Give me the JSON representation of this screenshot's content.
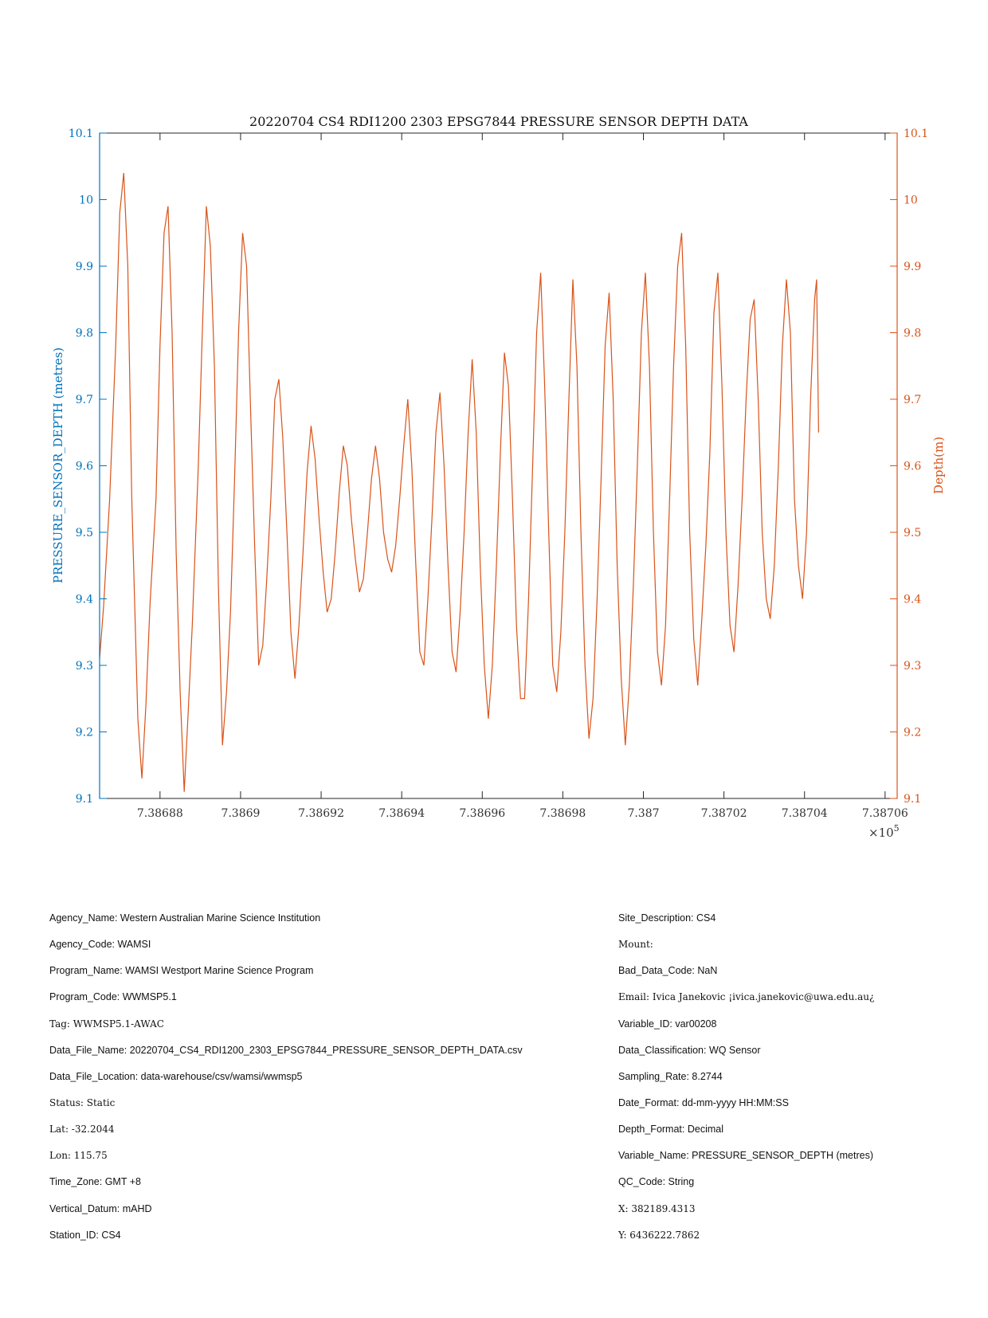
{
  "chart_data": {
    "type": "line",
    "title": "20220704 CS4 RDI1200 2303 EPSG7844 PRESSURE SENSOR DEPTH DATA",
    "ylabel_left": "PRESSURE_SENSOR_DEPTH (metres)",
    "ylabel_right": "Depth(m)",
    "x_exponent": "×10",
    "x_exponent_power": "5",
    "xlim": [
      738686.5,
      738706.3
    ],
    "ylim": [
      9.1,
      10.1
    ],
    "x_ticks": [
      {
        "value": 738688,
        "label": "7.38688"
      },
      {
        "value": 738690,
        "label": "7.3869"
      },
      {
        "value": 738692,
        "label": "7.38692"
      },
      {
        "value": 738694,
        "label": "7.38694"
      },
      {
        "value": 738696,
        "label": "7.38696"
      },
      {
        "value": 738698,
        "label": "7.38698"
      },
      {
        "value": 738700,
        "label": "7.387"
      },
      {
        "value": 738702,
        "label": "7.38702"
      },
      {
        "value": 738704,
        "label": "7.38704"
      },
      {
        "value": 738706,
        "label": "7.38706"
      }
    ],
    "y_ticks": [
      {
        "value": 9.1,
        "label": "9.1"
      },
      {
        "value": 9.2,
        "label": "9.2"
      },
      {
        "value": 9.3,
        "label": "9.3"
      },
      {
        "value": 9.4,
        "label": "9.4"
      },
      {
        "value": 9.5,
        "label": "9.5"
      },
      {
        "value": 9.6,
        "label": "9.6"
      },
      {
        "value": 9.7,
        "label": "9.7"
      },
      {
        "value": 9.8,
        "label": "9.8"
      },
      {
        "value": 9.9,
        "label": "9.9"
      },
      {
        "value": 10.0,
        "label": "10"
      },
      {
        "value": 10.1,
        "label": "10.1"
      }
    ],
    "grid": false,
    "legend": "none",
    "colors": {
      "left_axis": "#0072bd",
      "right_axis": "#d95319",
      "line": "#d95319"
    },
    "series": [
      {
        "points": [
          [
            738686.5,
            9.31
          ],
          [
            738686.6,
            9.39
          ],
          [
            738686.75,
            9.55
          ],
          [
            738686.9,
            9.78
          ],
          [
            738687.0,
            9.98
          ],
          [
            738687.1,
            10.04
          ],
          [
            738687.2,
            9.9
          ],
          [
            738687.3,
            9.55
          ],
          [
            738687.45,
            9.22
          ],
          [
            738687.55,
            9.13
          ],
          [
            738687.65,
            9.24
          ],
          [
            738687.75,
            9.39
          ],
          [
            738687.9,
            9.55
          ],
          [
            738688.0,
            9.78
          ],
          [
            738688.1,
            9.95
          ],
          [
            738688.2,
            9.99
          ],
          [
            738688.3,
            9.8
          ],
          [
            738688.4,
            9.47
          ],
          [
            738688.5,
            9.26
          ],
          [
            738688.6,
            9.11
          ],
          [
            738688.7,
            9.23
          ],
          [
            738688.8,
            9.36
          ],
          [
            738688.95,
            9.6
          ],
          [
            738689.05,
            9.8
          ],
          [
            738689.15,
            9.99
          ],
          [
            738689.25,
            9.93
          ],
          [
            738689.35,
            9.75
          ],
          [
            738689.45,
            9.42
          ],
          [
            738689.55,
            9.18
          ],
          [
            738689.65,
            9.26
          ],
          [
            738689.75,
            9.38
          ],
          [
            738689.85,
            9.58
          ],
          [
            738689.95,
            9.8
          ],
          [
            738690.05,
            9.95
          ],
          [
            738690.15,
            9.9
          ],
          [
            738690.25,
            9.68
          ],
          [
            738690.35,
            9.48
          ],
          [
            738690.45,
            9.3
          ],
          [
            738690.55,
            9.33
          ],
          [
            738690.65,
            9.43
          ],
          [
            738690.75,
            9.55
          ],
          [
            738690.85,
            9.7
          ],
          [
            738690.95,
            9.73
          ],
          [
            738691.05,
            9.64
          ],
          [
            738691.15,
            9.5
          ],
          [
            738691.25,
            9.35
          ],
          [
            738691.35,
            9.28
          ],
          [
            738691.45,
            9.36
          ],
          [
            738691.55,
            9.47
          ],
          [
            738691.65,
            9.59
          ],
          [
            738691.75,
            9.66
          ],
          [
            738691.85,
            9.61
          ],
          [
            738691.95,
            9.52
          ],
          [
            738692.05,
            9.44
          ],
          [
            738692.15,
            9.38
          ],
          [
            738692.25,
            9.4
          ],
          [
            738692.35,
            9.47
          ],
          [
            738692.45,
            9.56
          ],
          [
            738692.55,
            9.63
          ],
          [
            738692.65,
            9.6
          ],
          [
            738692.75,
            9.52
          ],
          [
            738692.85,
            9.46
          ],
          [
            738692.95,
            9.41
          ],
          [
            738693.05,
            9.43
          ],
          [
            738693.15,
            9.5
          ],
          [
            738693.25,
            9.58
          ],
          [
            738693.35,
            9.63
          ],
          [
            738693.45,
            9.58
          ],
          [
            738693.55,
            9.5
          ],
          [
            738693.65,
            9.46
          ],
          [
            738693.75,
            9.44
          ],
          [
            738693.85,
            9.48
          ],
          [
            738693.95,
            9.55
          ],
          [
            738694.05,
            9.63
          ],
          [
            738694.15,
            9.7
          ],
          [
            738694.25,
            9.6
          ],
          [
            738694.35,
            9.45
          ],
          [
            738694.45,
            9.32
          ],
          [
            738694.55,
            9.3
          ],
          [
            738694.65,
            9.4
          ],
          [
            738694.75,
            9.52
          ],
          [
            738694.85,
            9.65
          ],
          [
            738694.95,
            9.71
          ],
          [
            738695.05,
            9.6
          ],
          [
            738695.15,
            9.45
          ],
          [
            738695.25,
            9.32
          ],
          [
            738695.35,
            9.29
          ],
          [
            738695.45,
            9.38
          ],
          [
            738695.55,
            9.5
          ],
          [
            738695.65,
            9.65
          ],
          [
            738695.75,
            9.76
          ],
          [
            738695.85,
            9.65
          ],
          [
            738695.95,
            9.45
          ],
          [
            738696.05,
            9.3
          ],
          [
            738696.15,
            9.22
          ],
          [
            738696.25,
            9.3
          ],
          [
            738696.35,
            9.45
          ],
          [
            738696.45,
            9.62
          ],
          [
            738696.55,
            9.77
          ],
          [
            738696.65,
            9.72
          ],
          [
            738696.75,
            9.55
          ],
          [
            738696.85,
            9.36
          ],
          [
            738696.95,
            9.25
          ],
          [
            738697.05,
            9.25
          ],
          [
            738697.15,
            9.4
          ],
          [
            738697.25,
            9.6
          ],
          [
            738697.35,
            9.8
          ],
          [
            738697.45,
            9.89
          ],
          [
            738697.55,
            9.72
          ],
          [
            738697.65,
            9.5
          ],
          [
            738697.75,
            9.3
          ],
          [
            738697.85,
            9.26
          ],
          [
            738697.95,
            9.35
          ],
          [
            738698.05,
            9.5
          ],
          [
            738698.15,
            9.7
          ],
          [
            738698.25,
            9.88
          ],
          [
            738698.35,
            9.75
          ],
          [
            738698.45,
            9.5
          ],
          [
            738698.55,
            9.3
          ],
          [
            738698.65,
            9.19
          ],
          [
            738698.75,
            9.25
          ],
          [
            738698.85,
            9.4
          ],
          [
            738698.95,
            9.58
          ],
          [
            738699.05,
            9.78
          ],
          [
            738699.15,
            9.86
          ],
          [
            738699.25,
            9.7
          ],
          [
            738699.35,
            9.45
          ],
          [
            738699.45,
            9.28
          ],
          [
            738699.55,
            9.18
          ],
          [
            738699.65,
            9.27
          ],
          [
            738699.75,
            9.42
          ],
          [
            738699.85,
            9.6
          ],
          [
            738699.95,
            9.8
          ],
          [
            738700.05,
            9.89
          ],
          [
            738700.15,
            9.75
          ],
          [
            738700.25,
            9.5
          ],
          [
            738700.35,
            9.32
          ],
          [
            738700.45,
            9.27
          ],
          [
            738700.55,
            9.36
          ],
          [
            738700.65,
            9.55
          ],
          [
            738700.75,
            9.75
          ],
          [
            738700.85,
            9.9
          ],
          [
            738700.95,
            9.95
          ],
          [
            738701.05,
            9.78
          ],
          [
            738701.15,
            9.5
          ],
          [
            738701.25,
            9.34
          ],
          [
            738701.35,
            9.27
          ],
          [
            738701.45,
            9.37
          ],
          [
            738701.55,
            9.48
          ],
          [
            738701.65,
            9.62
          ],
          [
            738701.75,
            9.83
          ],
          [
            738701.85,
            9.89
          ],
          [
            738701.95,
            9.72
          ],
          [
            738702.05,
            9.5
          ],
          [
            738702.15,
            9.36
          ],
          [
            738702.25,
            9.32
          ],
          [
            738702.35,
            9.42
          ],
          [
            738702.45,
            9.55
          ],
          [
            738702.55,
            9.7
          ],
          [
            738702.65,
            9.82
          ],
          [
            738702.75,
            9.85
          ],
          [
            738702.85,
            9.7
          ],
          [
            738702.95,
            9.5
          ],
          [
            738703.05,
            9.4
          ],
          [
            738703.15,
            9.37
          ],
          [
            738703.25,
            9.45
          ],
          [
            738703.35,
            9.6
          ],
          [
            738703.45,
            9.78
          ],
          [
            738703.55,
            9.88
          ],
          [
            738703.65,
            9.8
          ],
          [
            738703.75,
            9.55
          ],
          [
            738703.85,
            9.45
          ],
          [
            738703.95,
            9.4
          ],
          [
            738704.05,
            9.5
          ],
          [
            738704.15,
            9.7
          ],
          [
            738704.25,
            9.85
          ],
          [
            738704.3,
            9.88
          ],
          [
            738704.35,
            9.65
          ]
        ]
      }
    ]
  },
  "metadata": {
    "left": [
      "Agency_Name: Western Australian Marine Science Institution",
      "Agency_Code: WAMSI",
      "Program_Name: WAMSI Westport Marine Science Program",
      "Program_Code: WWMSP5.1",
      "Tag: WWMSP5.1-AWAC",
      "Data_File_Name: 20220704_CS4_RDI1200_2303_EPSG7844_PRESSURE_SENSOR_DEPTH_DATA.csv",
      "Data_File_Location: data-warehouse/csv/wamsi/wwmsp5",
      "Status: Static",
      "Lat: -32.2044",
      "Lon: 115.75",
      "Time_Zone: GMT +8",
      "Vertical_Datum: mAHD",
      "Station_ID: CS4"
    ],
    "right": [
      "Site_Description: CS4",
      "Mount:",
      "Bad_Data_Code: NaN",
      "Email: Ivica Janekovic ¡ivica.janekovic@uwa.edu.au¿",
      "Variable_ID: var00208",
      "Data_Classification: WQ Sensor",
      "Sampling_Rate: 8.2744",
      "Date_Format: dd-mm-yyyy HH:MM:SS",
      "Depth_Format: Decimal",
      "Variable_Name: PRESSURE_SENSOR_DEPTH (metres)",
      "QC_Code: String",
      "X: 382189.4313",
      "Y: 6436222.7862"
    ],
    "left_serif_rows": [
      4,
      7,
      8,
      9
    ],
    "right_serif_rows": [
      1,
      3,
      11,
      12
    ]
  }
}
